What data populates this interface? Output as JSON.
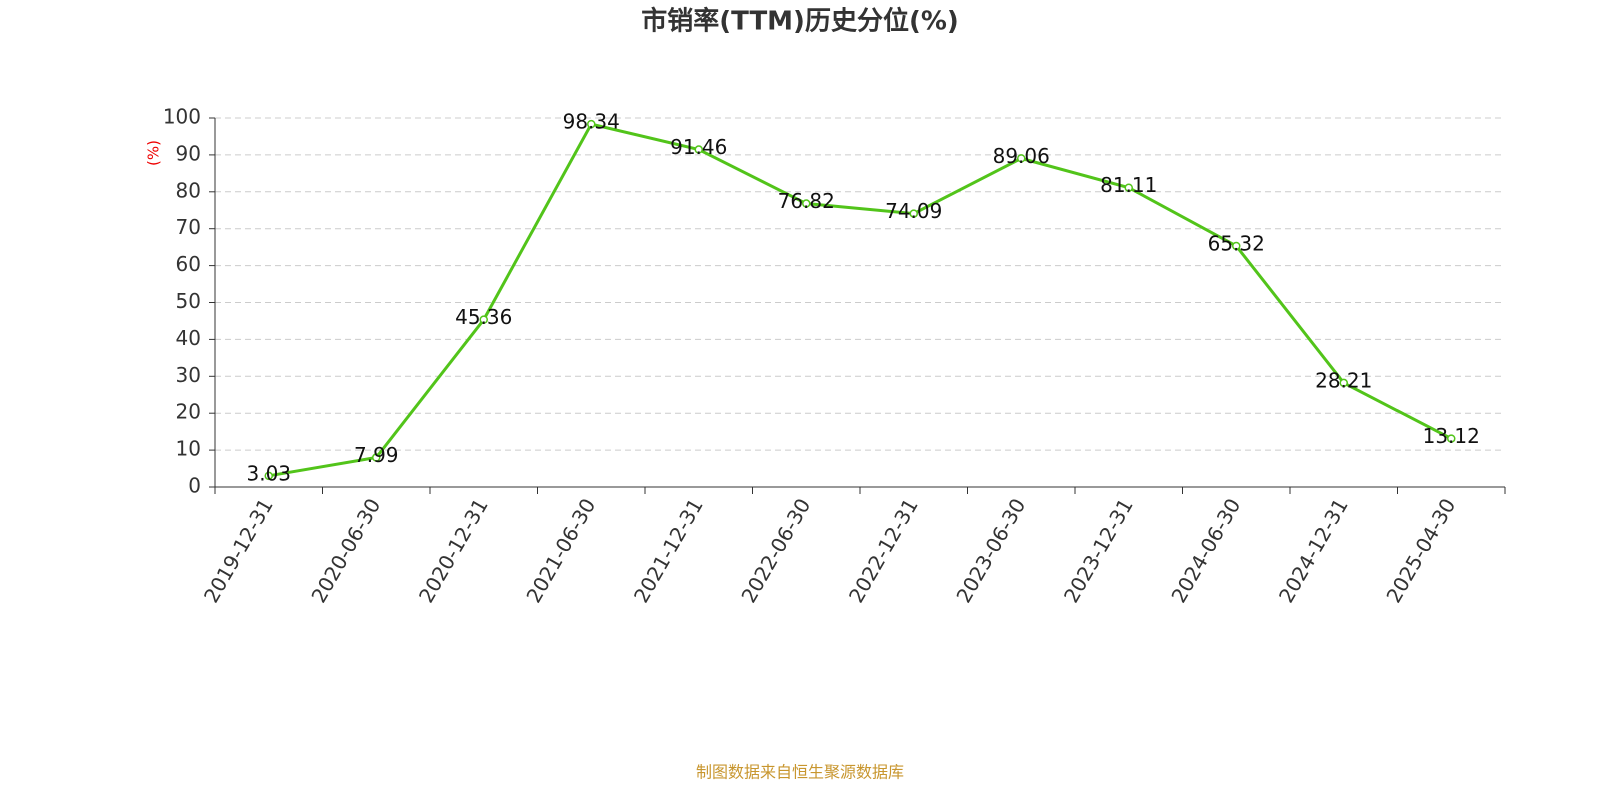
{
  "chart_data": {
    "type": "line",
    "title": "市销率(TTM)历史分位(%)",
    "y_label": "(%)",
    "source": "制图数据来自恒生聚源数据库",
    "categories": [
      "2019-12-31",
      "2020-06-30",
      "2020-12-31",
      "2021-06-30",
      "2021-12-31",
      "2022-06-30",
      "2022-12-31",
      "2023-06-30",
      "2023-12-31",
      "2024-06-30",
      "2024-12-31",
      "2025-04-30"
    ],
    "values": [
      3.03,
      7.99,
      45.36,
      98.34,
      91.46,
      76.82,
      74.09,
      89.06,
      81.11,
      65.32,
      28.21,
      13.12
    ],
    "color": "#52c41a",
    "ylim": [
      0,
      100
    ],
    "yticks": [
      0,
      10,
      20,
      30,
      40,
      50,
      60,
      70,
      80,
      90,
      100
    ],
    "grid": true
  }
}
